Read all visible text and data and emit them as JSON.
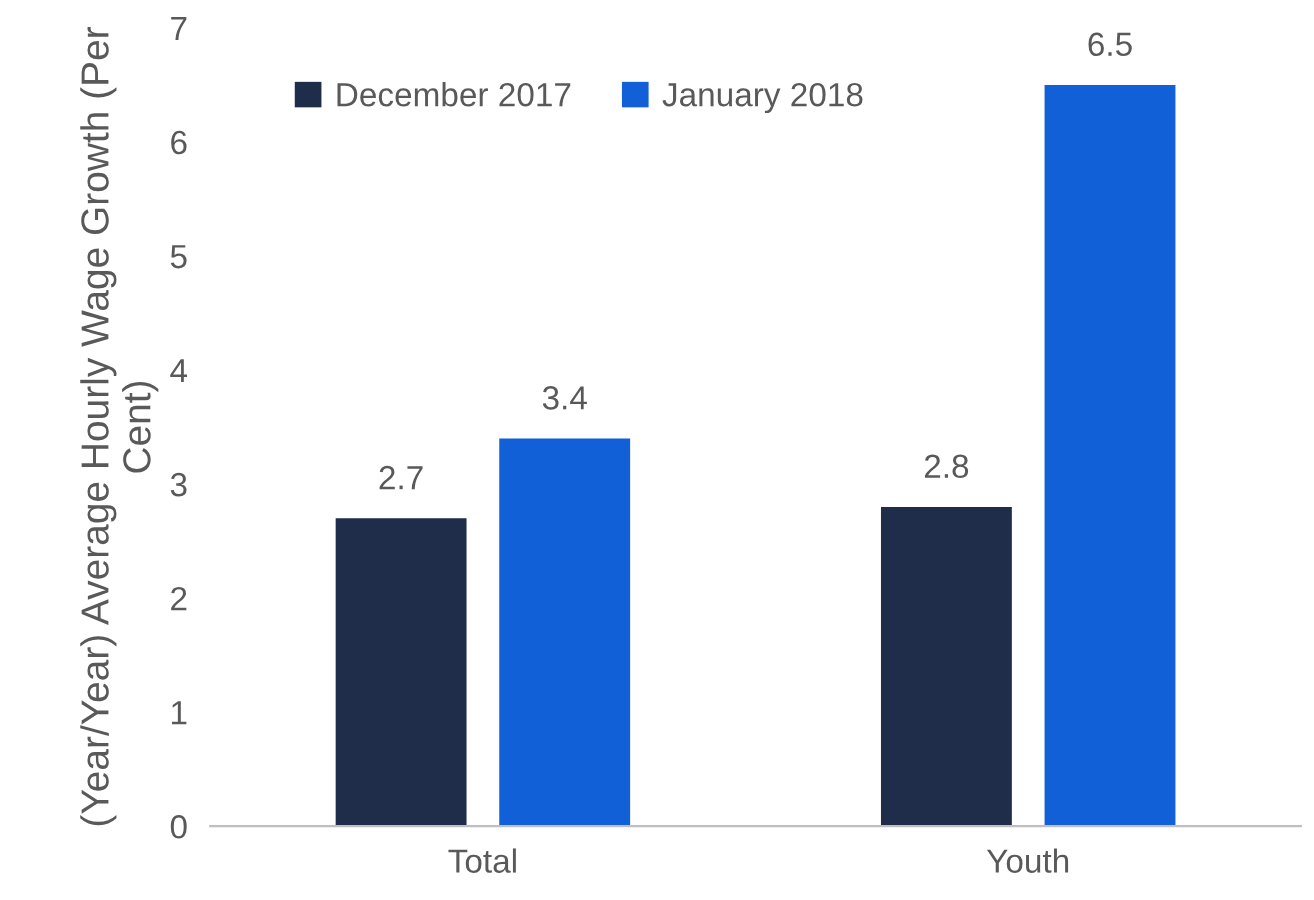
{
  "chart_data": {
    "type": "bar",
    "ylabel": "(Year/Year) Average Hourly Wage Growth (Per Cent)",
    "categories": [
      "Total",
      "Youth"
    ],
    "series": [
      {
        "name": "December 2017",
        "color": "#1f2d4b",
        "values": [
          2.7,
          2.8
        ]
      },
      {
        "name": "January 2018",
        "color": "#1160d8",
        "values": [
          3.4,
          6.5
        ]
      }
    ],
    "ylim": [
      0,
      7
    ],
    "yticks": [
      0,
      1,
      2,
      3,
      4,
      5,
      6,
      7
    ],
    "grid": false,
    "legend": "top left",
    "data_labels": true
  }
}
